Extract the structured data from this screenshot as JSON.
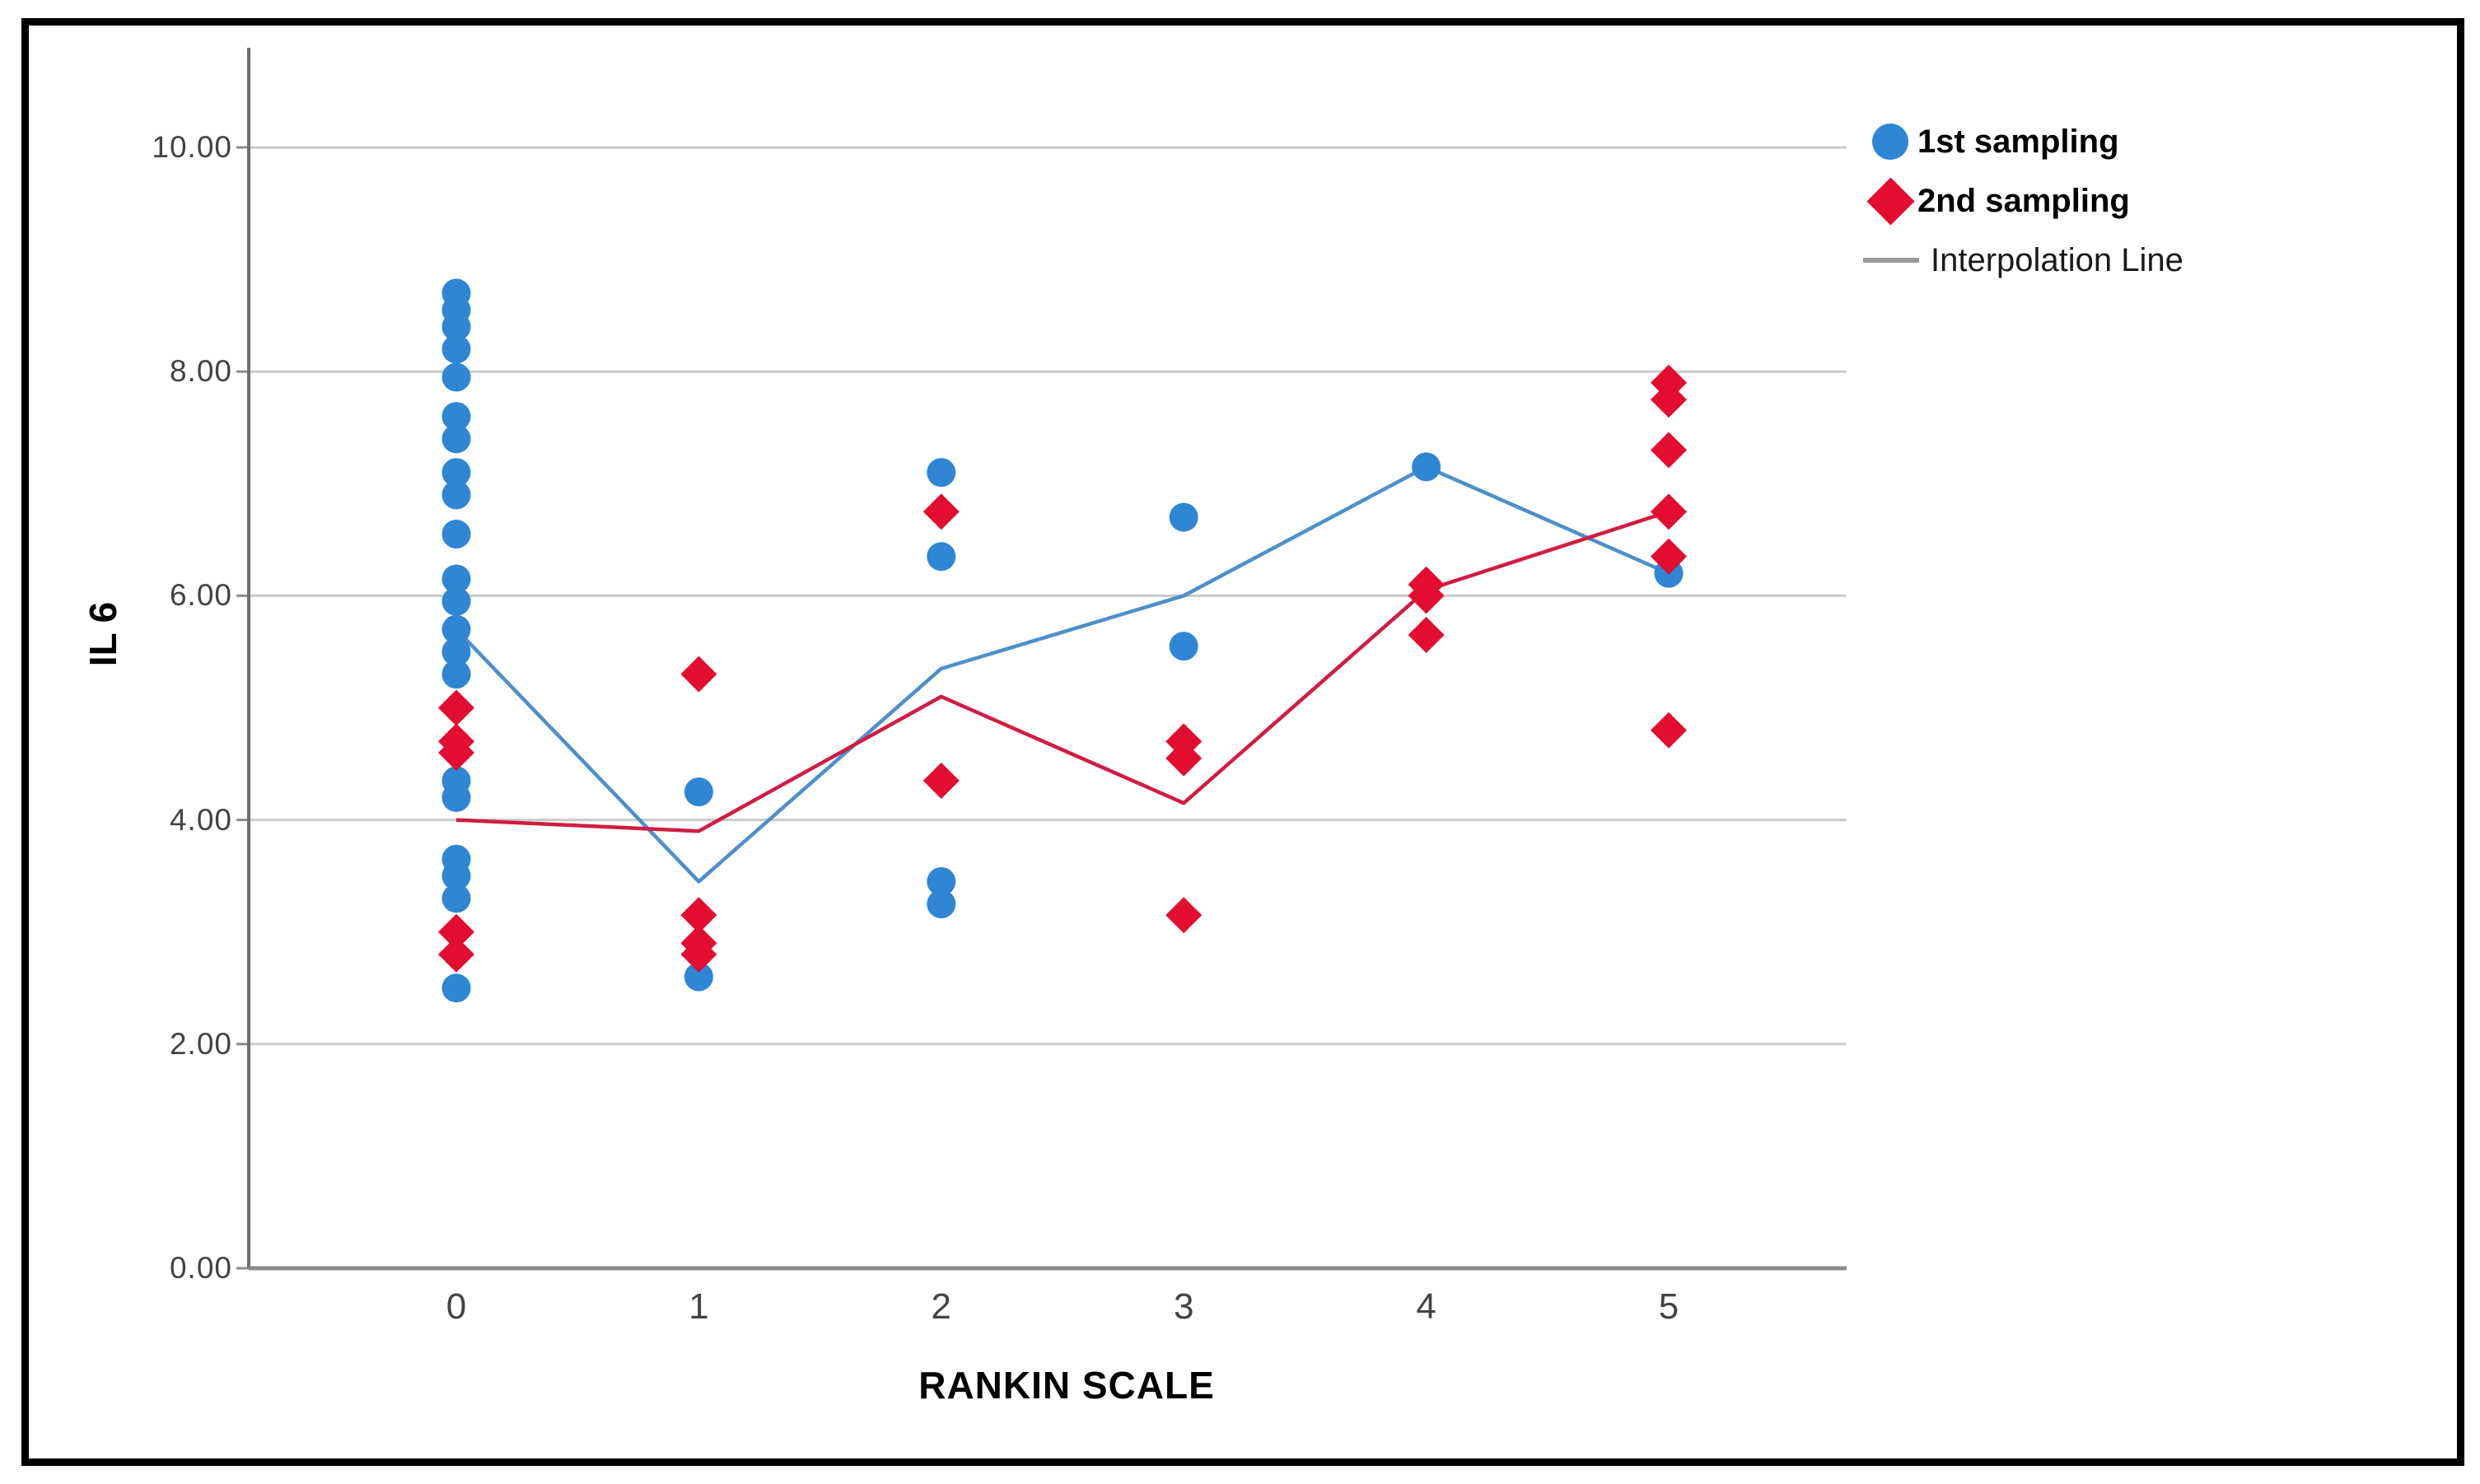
{
  "chart_data": {
    "type": "scatter",
    "title": "",
    "xlabel": "RANKIN SCALE",
    "ylabel": "IL 6",
    "xlim": [
      -0.86,
      5.73
    ],
    "ylim": [
      0,
      10.3
    ],
    "grid": "horizontal-gridlines",
    "x_ticks": [
      0,
      1,
      2,
      3,
      4,
      5
    ],
    "x_tick_labels": [
      "0",
      "1",
      "2",
      "3",
      "4",
      "5"
    ],
    "y_ticks": [
      0,
      2,
      4,
      6,
      8,
      10
    ],
    "y_tick_labels": [
      "0.00",
      "2.00",
      "4.00",
      "6.00",
      "8.00",
      "10.00"
    ],
    "colors": {
      "series1": "#2E86D4",
      "series2": "#E30C31",
      "line1": "#4D8FCB",
      "line2": "#D01C42",
      "gridline": "#CACACA",
      "x_axis": "#8C8C8C",
      "y_axis": "#6F6F6F",
      "legend_line_swatch": "#9A9A9A"
    },
    "series": [
      {
        "name": "1st sampling",
        "marker": "circle",
        "points": [
          [
            0,
            8.7
          ],
          [
            0,
            8.55
          ],
          [
            0,
            8.4
          ],
          [
            0,
            8.2
          ],
          [
            0,
            7.95
          ],
          [
            0,
            7.6
          ],
          [
            0,
            7.4
          ],
          [
            0,
            7.1
          ],
          [
            0,
            6.9
          ],
          [
            0,
            6.55
          ],
          [
            0,
            6.15
          ],
          [
            0,
            5.95
          ],
          [
            0,
            5.7
          ],
          [
            0,
            5.5
          ],
          [
            0,
            5.3
          ],
          [
            0,
            4.35
          ],
          [
            0,
            4.2
          ],
          [
            0,
            3.65
          ],
          [
            0,
            3.5
          ],
          [
            0,
            3.3
          ],
          [
            0,
            2.5
          ],
          [
            1,
            4.25
          ],
          [
            1,
            2.6
          ],
          [
            2,
            7.1
          ],
          [
            2,
            6.35
          ],
          [
            2,
            3.45
          ],
          [
            2,
            3.25
          ],
          [
            3,
            6.7
          ],
          [
            3,
            5.55
          ],
          [
            4,
            7.15
          ],
          [
            5,
            6.2
          ]
        ]
      },
      {
        "name": "2nd sampling",
        "marker": "diamond",
        "points": [
          [
            0,
            5.0
          ],
          [
            0,
            4.7
          ],
          [
            0,
            4.6
          ],
          [
            0,
            3.0
          ],
          [
            0,
            2.8
          ],
          [
            1,
            5.3
          ],
          [
            1,
            3.15
          ],
          [
            1,
            2.9
          ],
          [
            1,
            2.8
          ],
          [
            2,
            6.75
          ],
          [
            2,
            4.35
          ],
          [
            3,
            4.7
          ],
          [
            3,
            4.55
          ],
          [
            3,
            3.15
          ],
          [
            4,
            6.1
          ],
          [
            4,
            6.0
          ],
          [
            4,
            5.65
          ],
          [
            5,
            7.9
          ],
          [
            5,
            7.75
          ],
          [
            5,
            7.3
          ],
          [
            5,
            6.75
          ],
          [
            5,
            6.35
          ],
          [
            5,
            4.8
          ]
        ]
      }
    ],
    "interpolation_lines": [
      {
        "series": "1st sampling",
        "x": [
          0,
          1,
          2,
          3,
          4,
          5
        ],
        "y": [
          5.7,
          3.45,
          5.35,
          6.0,
          7.15,
          6.2
        ]
      },
      {
        "series": "2nd sampling",
        "x": [
          0,
          1,
          2,
          3,
          4,
          5
        ],
        "y": [
          4.0,
          3.9,
          5.1,
          4.15,
          6.05,
          6.75
        ]
      }
    ],
    "legend": {
      "position": "top-right",
      "items": [
        {
          "label": "1st sampling",
          "marker": "circle"
        },
        {
          "label": "2nd sampling",
          "marker": "diamond"
        },
        {
          "label": "Interpolation Line",
          "marker": "line"
        }
      ]
    }
  }
}
